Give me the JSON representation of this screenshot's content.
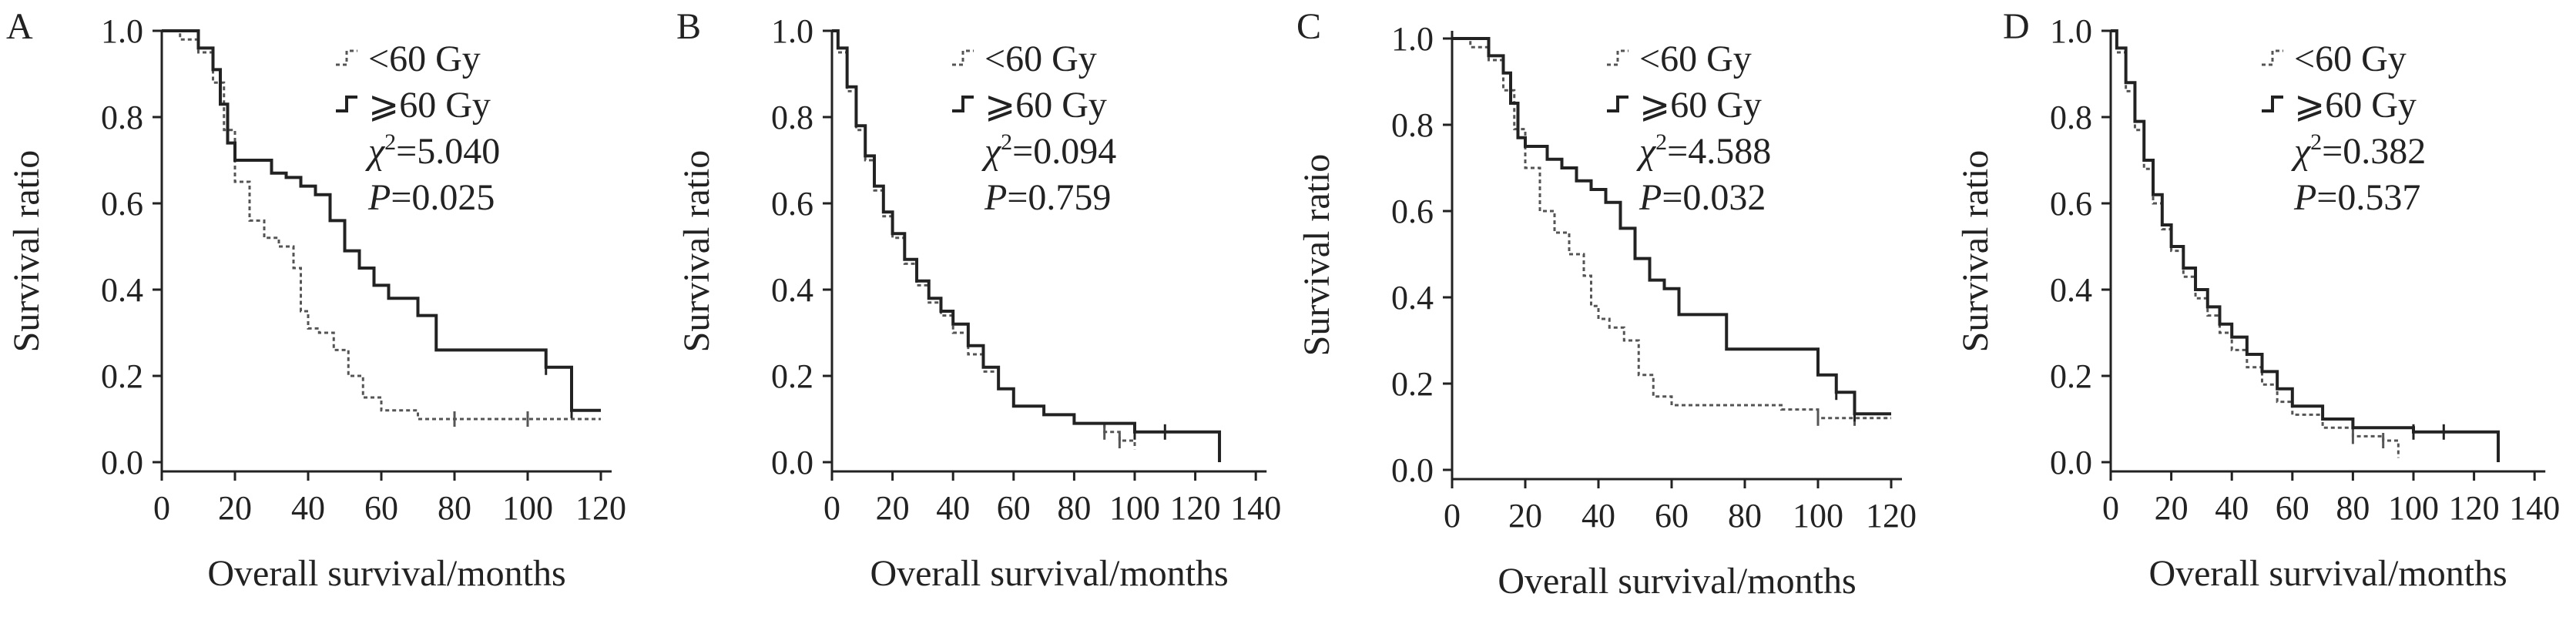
{
  "axis_labels": {
    "xlabel": "Overall survival/months",
    "ylabel": "Survival ratio"
  },
  "legend_labels": [
    "<60 Gy",
    "⩾60 Gy"
  ],
  "colors": {
    "lt60": "#555555",
    "ge60": "#222222"
  },
  "chart_data": [
    {
      "type": "line",
      "panel_letter": "A",
      "xlabel": "Overall survival/months",
      "ylabel": "Survival ratio",
      "xlim": [
        0,
        120
      ],
      "ylim": [
        0,
        1
      ],
      "x_ticks": [
        "0",
        "20",
        "40",
        "60",
        "80",
        "100",
        "120"
      ],
      "y_ticks": [
        "0.0",
        "0.2",
        "0.4",
        "0.6",
        "0.8",
        "1.0"
      ],
      "legend": [
        "<60 Gy",
        "⩾60 Gy"
      ],
      "legend_placement": "top-right",
      "chi_label": "χ",
      "chi_sup": "2",
      "chi_value": "=5.040",
      "p_label": "P",
      "p_value": "=0.025",
      "series": [
        {
          "name": "<60 Gy",
          "style": "dotted",
          "x": [
            0,
            5,
            10,
            14,
            17,
            20,
            24,
            28,
            32,
            36,
            38,
            40,
            43,
            47,
            51,
            55,
            60,
            70,
            80,
            100,
            120
          ],
          "y": [
            1.0,
            0.98,
            0.95,
            0.88,
            0.77,
            0.65,
            0.56,
            0.52,
            0.5,
            0.45,
            0.35,
            0.31,
            0.3,
            0.26,
            0.2,
            0.15,
            0.12,
            0.1,
            0.1,
            0.1,
            0.1
          ]
        },
        {
          "name": "⩾60 Gy",
          "style": "solid",
          "x": [
            0,
            8,
            10,
            14,
            16,
            18,
            20,
            26,
            30,
            34,
            38,
            42,
            46,
            50,
            54,
            58,
            62,
            70,
            75,
            100,
            105,
            112,
            120
          ],
          "y": [
            1.0,
            1.0,
            0.96,
            0.91,
            0.83,
            0.74,
            0.7,
            0.7,
            0.67,
            0.66,
            0.64,
            0.62,
            0.56,
            0.49,
            0.45,
            0.41,
            0.38,
            0.34,
            0.26,
            0.26,
            0.22,
            0.12,
            0.12
          ]
        }
      ]
    },
    {
      "type": "line",
      "panel_letter": "B",
      "xlabel": "Overall survival/months",
      "ylabel": "Survival ratio",
      "xlim": [
        0,
        140
      ],
      "ylim": [
        0,
        1
      ],
      "x_ticks": [
        "0",
        "20",
        "40",
        "60",
        "80",
        "100",
        "120",
        "140"
      ],
      "y_ticks": [
        "0.0",
        "0.2",
        "0.4",
        "0.6",
        "0.8",
        "1.0"
      ],
      "legend": [
        "<60 Gy",
        "⩾60 Gy"
      ],
      "legend_placement": "top-right",
      "chi_label": "χ",
      "chi_sup": "2",
      "chi_value": "=0.094",
      "p_label": "P",
      "p_value": "=0.759",
      "series": [
        {
          "name": "<60 Gy",
          "style": "dotted",
          "x": [
            0,
            2,
            5,
            8,
            11,
            14,
            17,
            20,
            24,
            28,
            32,
            36,
            40,
            45,
            50,
            55,
            60,
            70,
            80,
            90,
            95,
            100
          ],
          "y": [
            1.0,
            0.95,
            0.86,
            0.77,
            0.7,
            0.63,
            0.57,
            0.52,
            0.46,
            0.41,
            0.37,
            0.34,
            0.3,
            0.25,
            0.21,
            0.17,
            0.13,
            0.11,
            0.09,
            0.07,
            0.05,
            0.03
          ]
        },
        {
          "name": "⩾60 Gy",
          "style": "solid",
          "x": [
            0,
            2,
            5,
            8,
            11,
            14,
            17,
            20,
            24,
            28,
            32,
            36,
            40,
            45,
            50,
            55,
            60,
            70,
            80,
            100,
            110,
            128
          ],
          "y": [
            1.0,
            0.96,
            0.87,
            0.78,
            0.71,
            0.64,
            0.58,
            0.53,
            0.47,
            0.42,
            0.38,
            0.35,
            0.32,
            0.27,
            0.22,
            0.17,
            0.13,
            0.11,
            0.09,
            0.07,
            0.07,
            0.0
          ]
        }
      ]
    },
    {
      "type": "line",
      "panel_letter": "C",
      "xlabel": "Overall survival/months",
      "ylabel": "Survival ratio",
      "xlim": [
        0,
        120
      ],
      "ylim": [
        0,
        1
      ],
      "x_ticks": [
        "0",
        "20",
        "40",
        "60",
        "80",
        "100",
        "120"
      ],
      "y_ticks": [
        "0.0",
        "0.2",
        "0.4",
        "0.6",
        "0.8",
        "1.0"
      ],
      "legend": [
        "<60 Gy",
        "⩾60 Gy"
      ],
      "legend_placement": "top-right",
      "chi_label": "χ",
      "chi_sup": "2",
      "chi_value": "=4.588",
      "p_label": "P",
      "p_value": "=0.032",
      "series": [
        {
          "name": "<60 Gy",
          "style": "dotted",
          "x": [
            0,
            5,
            10,
            14,
            17,
            20,
            24,
            28,
            32,
            36,
            38,
            40,
            43,
            47,
            51,
            55,
            60,
            70,
            80,
            90,
            100,
            110,
            120
          ],
          "y": [
            1.0,
            0.98,
            0.95,
            0.88,
            0.79,
            0.7,
            0.6,
            0.55,
            0.5,
            0.45,
            0.38,
            0.35,
            0.33,
            0.3,
            0.22,
            0.17,
            0.15,
            0.15,
            0.15,
            0.14,
            0.12,
            0.12,
            0.12
          ]
        },
        {
          "name": "⩾60 Gy",
          "style": "solid",
          "x": [
            0,
            8,
            10,
            14,
            16,
            18,
            20,
            26,
            30,
            34,
            38,
            42,
            46,
            50,
            54,
            58,
            62,
            68,
            75,
            100,
            105,
            110,
            120
          ],
          "y": [
            1.0,
            1.0,
            0.96,
            0.92,
            0.85,
            0.77,
            0.75,
            0.72,
            0.7,
            0.67,
            0.65,
            0.62,
            0.56,
            0.49,
            0.44,
            0.42,
            0.36,
            0.36,
            0.28,
            0.22,
            0.18,
            0.13,
            0.13
          ]
        }
      ]
    },
    {
      "type": "line",
      "panel_letter": "D",
      "xlabel": "Overall survival/months",
      "ylabel": "Survival ratio",
      "xlim": [
        0,
        140
      ],
      "ylim": [
        0,
        1
      ],
      "x_ticks": [
        "0",
        "20",
        "40",
        "60",
        "80",
        "100",
        "120",
        "140"
      ],
      "y_ticks": [
        "0.0",
        "0.2",
        "0.4",
        "0.6",
        "0.8",
        "1.0"
      ],
      "legend": [
        "<60 Gy",
        "⩾60 Gy"
      ],
      "legend_placement": "top-right",
      "chi_label": "χ",
      "chi_sup": "2",
      "chi_value": "=0.382",
      "p_label": "P",
      "p_value": "=0.537",
      "series": [
        {
          "name": "<60 Gy",
          "style": "dotted",
          "x": [
            0,
            2,
            5,
            8,
            11,
            14,
            17,
            20,
            24,
            28,
            32,
            36,
            40,
            45,
            50,
            55,
            60,
            70,
            80,
            90,
            95
          ],
          "y": [
            1.0,
            0.95,
            0.86,
            0.77,
            0.68,
            0.6,
            0.54,
            0.49,
            0.43,
            0.38,
            0.34,
            0.3,
            0.26,
            0.22,
            0.18,
            0.14,
            0.11,
            0.08,
            0.06,
            0.05,
            0.01
          ]
        },
        {
          "name": "⩾60 Gy",
          "style": "solid",
          "x": [
            0,
            2,
            5,
            8,
            11,
            14,
            17,
            20,
            24,
            28,
            32,
            36,
            40,
            45,
            50,
            55,
            60,
            70,
            80,
            100,
            110,
            128
          ],
          "y": [
            1.0,
            0.96,
            0.88,
            0.79,
            0.7,
            0.62,
            0.55,
            0.5,
            0.45,
            0.4,
            0.36,
            0.32,
            0.29,
            0.25,
            0.21,
            0.17,
            0.13,
            0.1,
            0.08,
            0.07,
            0.07,
            0.0
          ]
        }
      ]
    }
  ]
}
